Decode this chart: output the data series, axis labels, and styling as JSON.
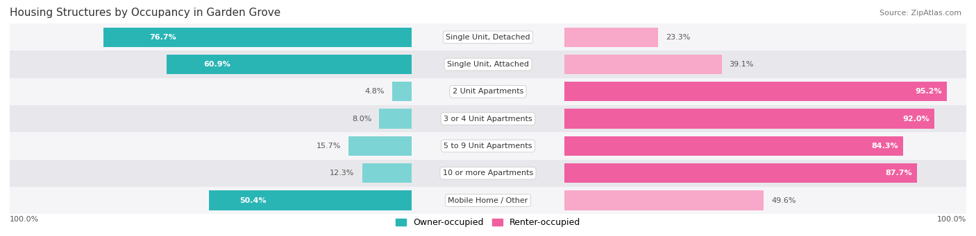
{
  "title": "Housing Structures by Occupancy in Garden Grove",
  "source": "Source: ZipAtlas.com",
  "categories": [
    "Single Unit, Detached",
    "Single Unit, Attached",
    "2 Unit Apartments",
    "3 or 4 Unit Apartments",
    "5 to 9 Unit Apartments",
    "10 or more Apartments",
    "Mobile Home / Other"
  ],
  "owner_pct": [
    76.7,
    60.9,
    4.8,
    8.0,
    15.7,
    12.3,
    50.4
  ],
  "renter_pct": [
    23.3,
    39.1,
    95.2,
    92.0,
    84.3,
    87.7,
    49.6
  ],
  "owner_color_dark": "#2ab5b5",
  "owner_color_light": "#7dd4d4",
  "renter_color_dark": "#f060a0",
  "renter_color_light": "#f8a8c8",
  "row_bg_dark": "#e8e8ec",
  "row_bg_light": "#f5f5f8",
  "title_fontsize": 11,
  "label_fontsize": 8,
  "pct_fontsize": 8,
  "legend_fontsize": 9,
  "source_fontsize": 8,
  "owner_dark_threshold": 30,
  "renter_dark_threshold": 50
}
